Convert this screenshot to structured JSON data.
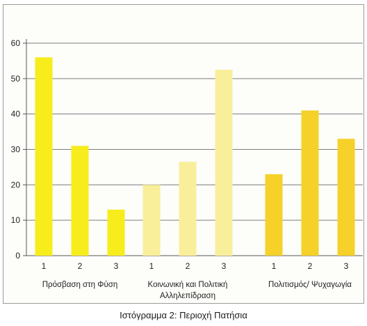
{
  "chart_data": {
    "type": "bar",
    "title": "",
    "ylim": [
      0,
      60
    ],
    "yticks": [
      0,
      10,
      20,
      30,
      40,
      50,
      60
    ],
    "grid": true,
    "groups": [
      {
        "label_lines": [
          "Πρόσβαση στη Φύση"
        ],
        "color": "#f7ec1c",
        "x": [
          "1",
          "2",
          "3"
        ],
        "values": [
          56,
          31,
          13
        ]
      },
      {
        "label_lines": [
          "Κοινωνική και Πολιτική",
          "Αλληλεπίδραση"
        ],
        "color": "#f9ef9a",
        "x": [
          "1",
          "2",
          "3"
        ],
        "values": [
          20,
          26.5,
          52.5
        ]
      },
      {
        "label_lines": [
          "Πολιτισμός/ Ψυχαγωγία"
        ],
        "color": "#f5d12a",
        "x": [
          "1",
          "2",
          "3"
        ],
        "values": [
          23,
          41,
          33
        ]
      }
    ]
  },
  "caption": "Ιστόγραμμα 2: Περιοχή Πατήσια"
}
